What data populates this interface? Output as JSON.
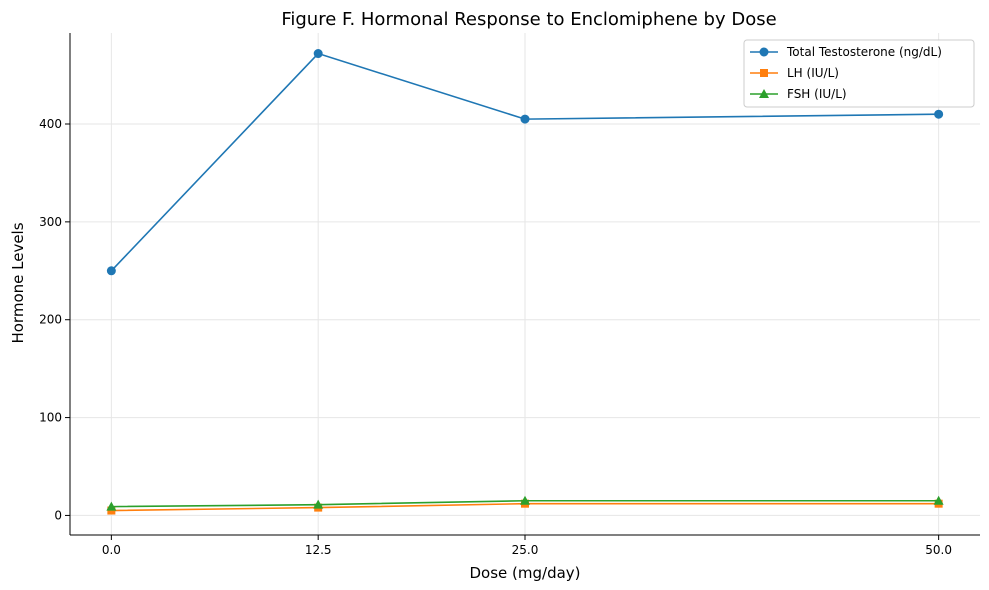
{
  "chart_data": {
    "type": "line",
    "title": "Figure F. Hormonal Response to Enclomiphene by Dose",
    "xlabel": "Dose (mg/day)",
    "ylabel": "Hormone Levels",
    "x": [
      0.0,
      12.5,
      25.0,
      50.0
    ],
    "x_tick_labels": [
      "0.0",
      "12.5",
      "25.0",
      "50.0"
    ],
    "xlim": [
      -2.5,
      52.5
    ],
    "ylim": [
      -20,
      493
    ],
    "y_ticks": [
      0,
      100,
      200,
      300,
      400
    ],
    "y_tick_labels": [
      "0",
      "100",
      "200",
      "300",
      "400"
    ],
    "grid": true,
    "legend_position": "top-right",
    "series": [
      {
        "name": "Total Testosterone (ng/dL)",
        "color": "#1f77b4",
        "marker": "circle",
        "values": [
          250,
          472,
          405,
          410
        ]
      },
      {
        "name": "LH (IU/L)",
        "color": "#ff7f0e",
        "marker": "square",
        "values": [
          5,
          8,
          12,
          12
        ]
      },
      {
        "name": "FSH (IU/L)",
        "color": "#2ca02c",
        "marker": "triangle",
        "values": [
          9,
          11,
          15,
          15
        ]
      }
    ]
  }
}
